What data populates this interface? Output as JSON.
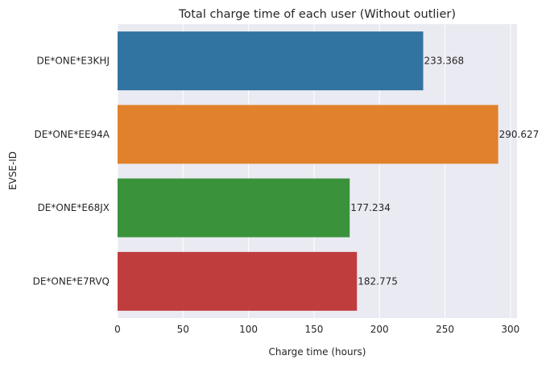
{
  "chart_data": {
    "type": "bar",
    "orientation": "horizontal",
    "title": "Total charge time of each user (Without outlier)",
    "xlabel": "Charge time (hours)",
    "ylabel": "EVSE-ID",
    "categories": [
      "DE*ONE*E3KHJ",
      "DE*ONE*EE94A",
      "DE*ONE*E68JX",
      "DE*ONE*E7RVQ"
    ],
    "values": [
      233.368,
      290.627,
      177.234,
      182.775
    ],
    "value_labels": [
      "233.368",
      "290.627",
      "177.234",
      "182.775"
    ],
    "colors": [
      "#3274a1",
      "#e1812c",
      "#3a923a",
      "#c03d3e"
    ],
    "xlim": [
      0,
      305
    ],
    "xticks": [
      0,
      50,
      100,
      150,
      200,
      250,
      300
    ],
    "grid": true,
    "background": "#eaeaf2"
  }
}
